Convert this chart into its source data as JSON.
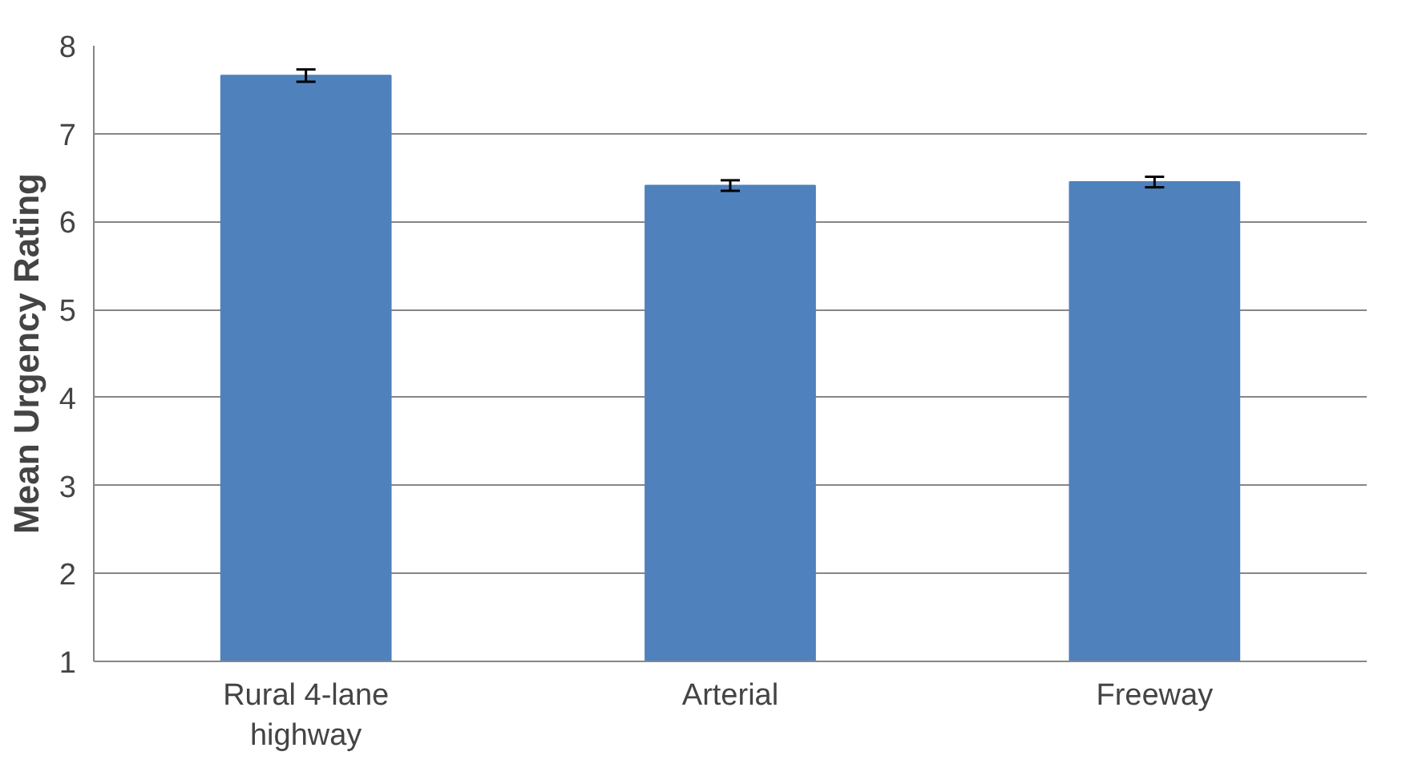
{
  "chart_data": {
    "type": "bar",
    "ylabel": "Mean Urgency Rating",
    "categories": [
      "Rural 4-lane highway",
      "Arterial",
      "Freeway"
    ],
    "values": [
      7.66,
      6.41,
      6.45
    ],
    "errors": [
      0.07,
      0.06,
      0.06
    ],
    "color": "#4f81bd",
    "ylim": [
      1,
      8
    ],
    "yticks": [
      1,
      2,
      3,
      4,
      5,
      6,
      7,
      8
    ],
    "grid": "y"
  }
}
